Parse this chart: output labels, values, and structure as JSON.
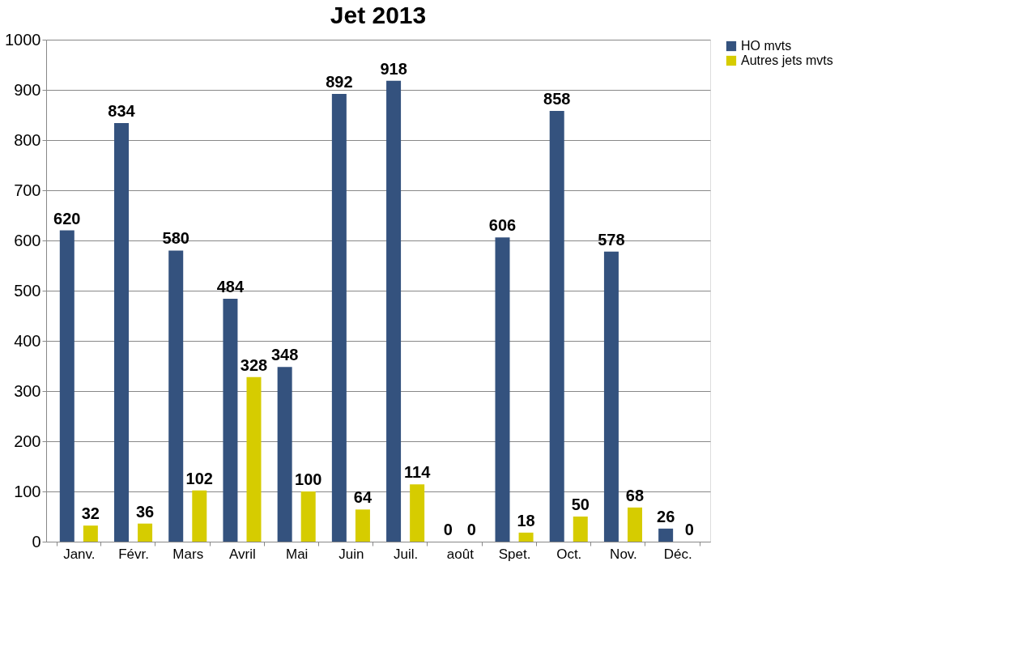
{
  "chart_data": {
    "type": "bar",
    "title": "Jet 2013",
    "categories": [
      "Janv.",
      "Févr.",
      "Mars",
      "Avril",
      "Mai",
      "Juin",
      "Juil.",
      "août",
      "Spet.",
      "Oct.",
      "Nov.",
      "Déc."
    ],
    "series": [
      {
        "name": "HO mvts",
        "color": "#34527e",
        "values": [
          620,
          834,
          580,
          484,
          348,
          892,
          918,
          0,
          606,
          858,
          578,
          26
        ]
      },
      {
        "name": "Autres jets mvts",
        "color": "#d6cc00",
        "values": [
          32,
          36,
          102,
          328,
          100,
          64,
          114,
          0,
          18,
          50,
          68,
          0
        ]
      }
    ],
    "ylim": [
      0,
      1000
    ],
    "yticks": [
      0,
      100,
      200,
      300,
      400,
      500,
      600,
      700,
      800,
      900,
      1000
    ],
    "grid": "y",
    "legend": "right",
    "data_labels": true
  }
}
